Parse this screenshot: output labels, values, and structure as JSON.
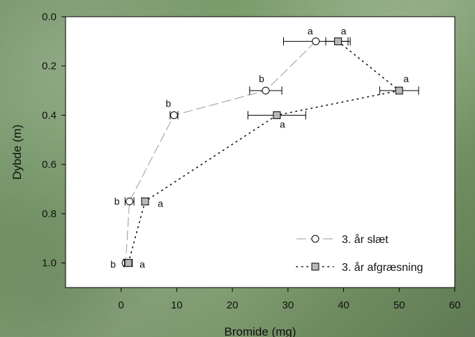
{
  "chart_data": {
    "type": "scatter",
    "xlabel": "Bromide (mg)",
    "ylabel": "Dybde (m)",
    "xlim": [
      -10,
      60
    ],
    "ylim": [
      0.0,
      1.1
    ],
    "y_inverted": true,
    "x_ticks": [
      "0",
      "10",
      "20",
      "30",
      "40",
      "50",
      "60"
    ],
    "y_ticks": [
      "0.0",
      "0.2",
      "0.4",
      "0.6",
      "0.8",
      "1.0"
    ],
    "legend_position": "bottom-right",
    "series": [
      {
        "name": "3. år slæt",
        "marker": "circle",
        "line": "long-dash",
        "color": "#ffffff",
        "points": [
          {
            "x": 35,
            "y": 0.1,
            "err": 5.8,
            "label": "a"
          },
          {
            "x": 26,
            "y": 0.3,
            "err": 2.9,
            "label": "b"
          },
          {
            "x": 9.5,
            "y": 0.4,
            "err": 0.7,
            "label": "b"
          },
          {
            "x": 1.5,
            "y": 0.75,
            "err": 0.8,
            "label": "b"
          },
          {
            "x": 0.8,
            "y": 1.0,
            "err": 0.4,
            "label": "b"
          }
        ]
      },
      {
        "name": "3. år afgræsning",
        "marker": "square",
        "line": "dotted",
        "color": "#b8b8b8",
        "points": [
          {
            "x": 39,
            "y": 0.1,
            "err": 2.2,
            "label": "a"
          },
          {
            "x": 50,
            "y": 0.3,
            "err": 3.5,
            "label": "a"
          },
          {
            "x": 28,
            "y": 0.4,
            "err": 5.2,
            "label": "a"
          },
          {
            "x": 4.3,
            "y": 0.75,
            "err": 0.6,
            "label": "a"
          },
          {
            "x": 1.3,
            "y": 1.0,
            "err": 0.7,
            "label": "a"
          }
        ]
      }
    ]
  }
}
